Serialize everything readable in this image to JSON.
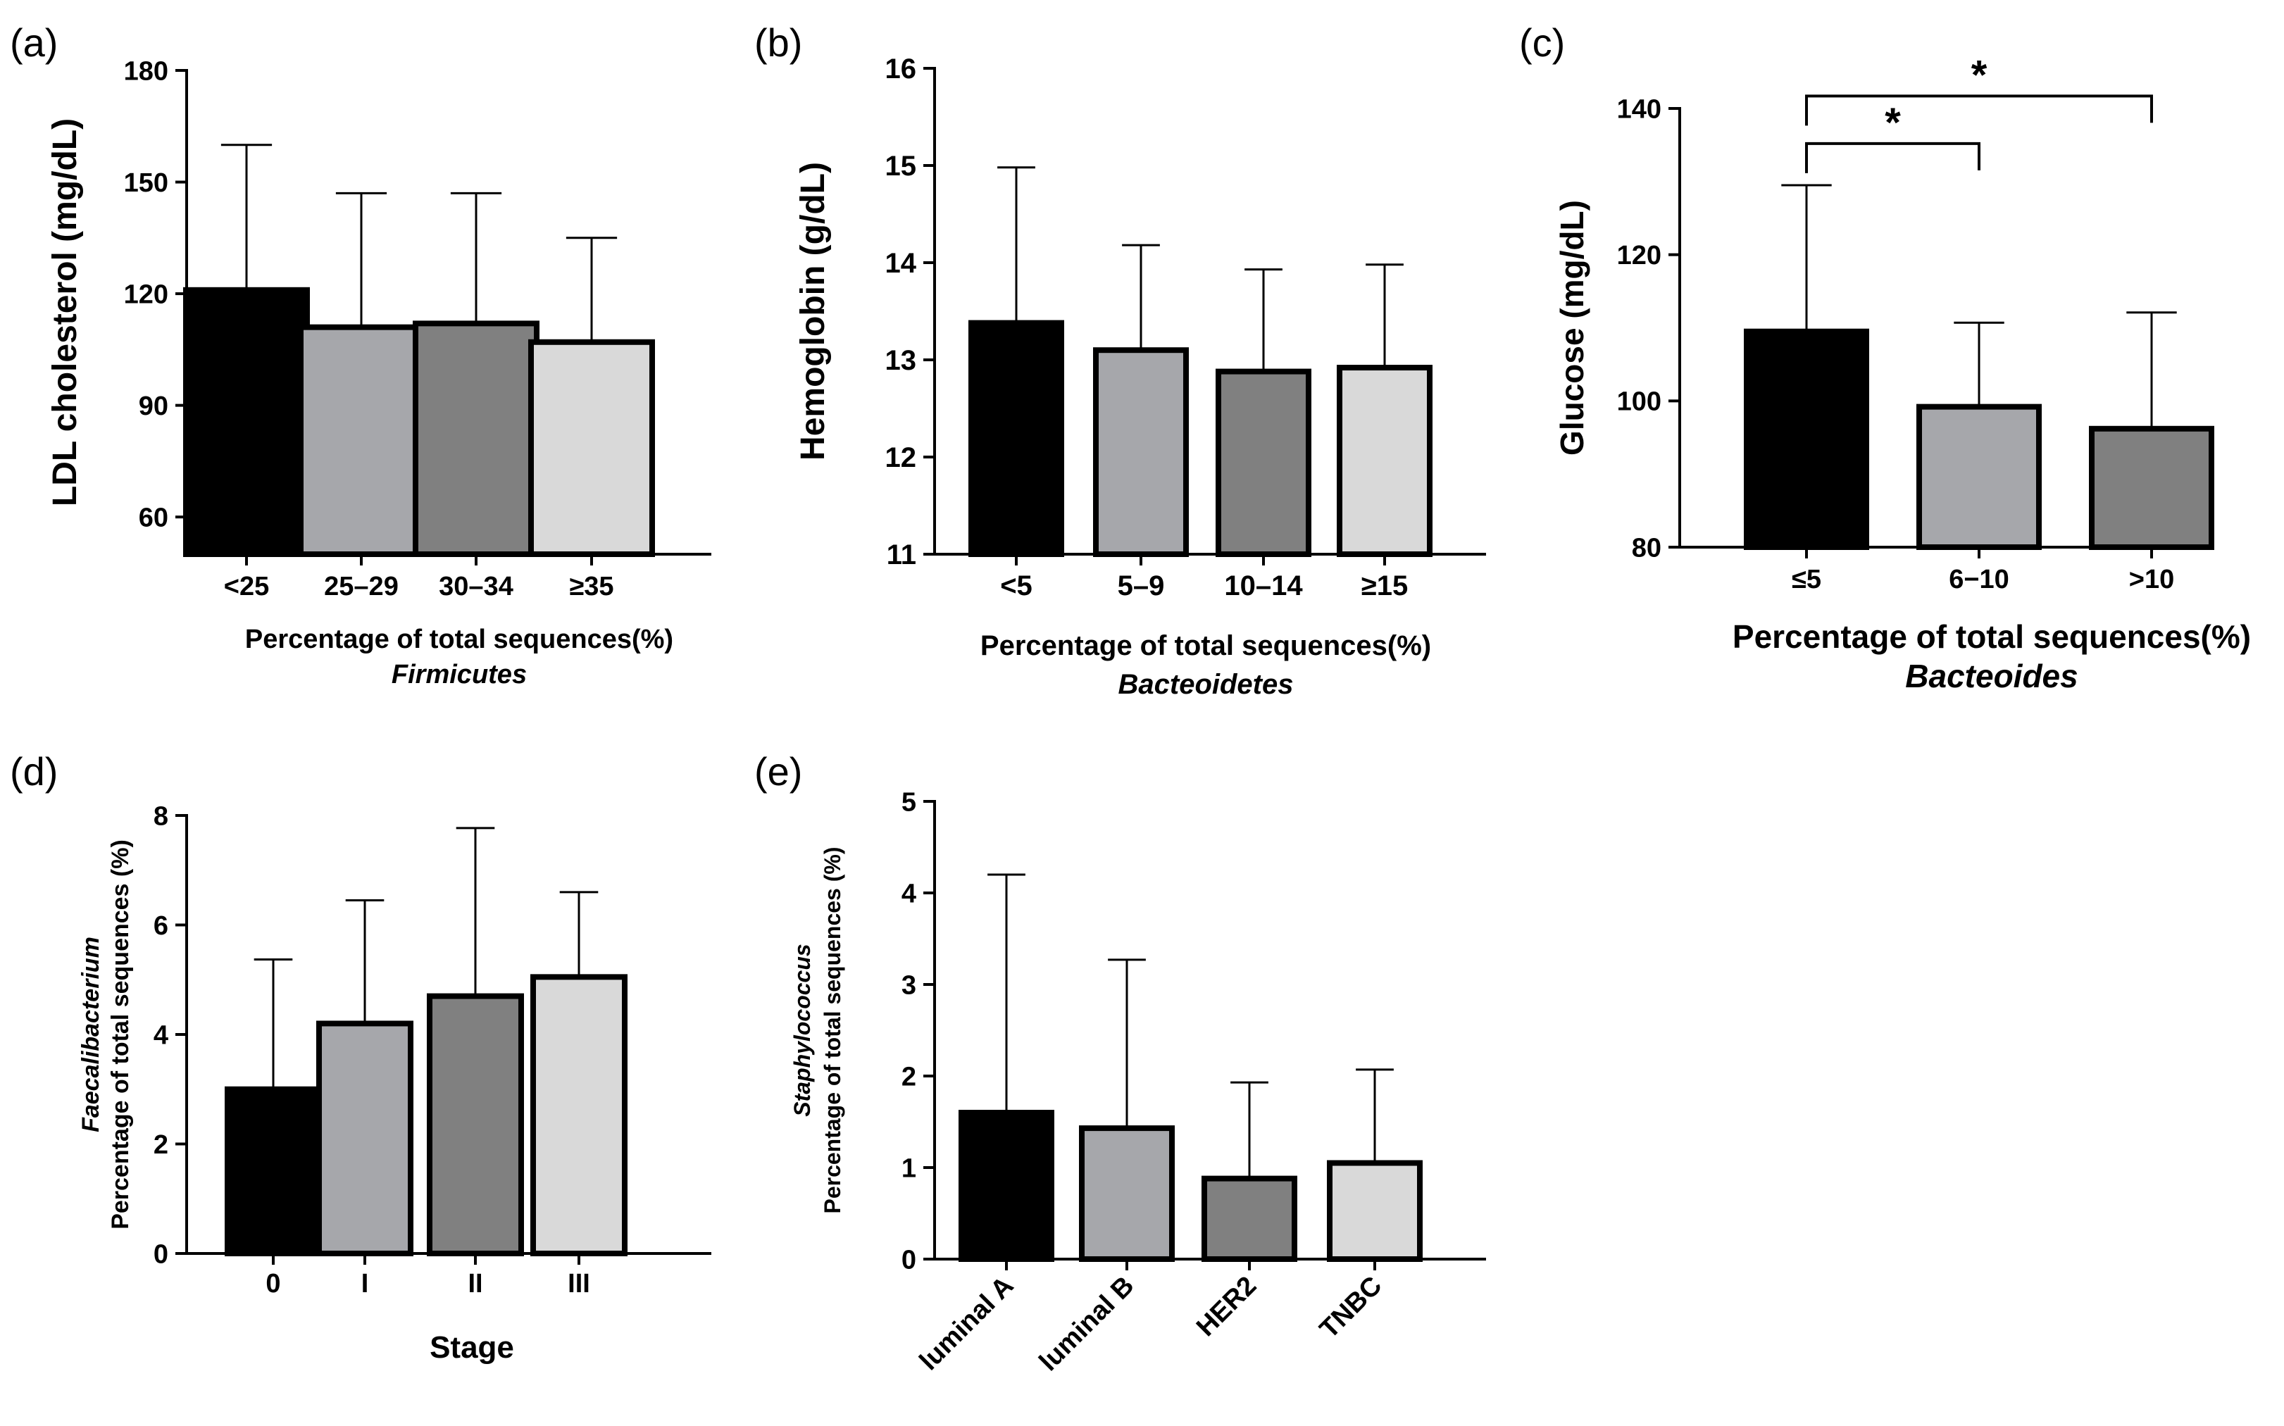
{
  "colors": {
    "black": "#000000",
    "mid_grey": "#a6a7ab",
    "dark_grey": "#808080",
    "light_grey": "#d9d9d9"
  },
  "chart_data": [
    {
      "panel": "(a)",
      "type": "bar",
      "categories": [
        "<25",
        "25–29",
        "30–34",
        "≥35"
      ],
      "values": [
        121,
        111,
        112,
        107
      ],
      "error_upper": [
        160,
        147,
        147,
        135
      ],
      "colors": [
        "#000000",
        "#a6a7ab",
        "#808080",
        "#d9d9d9"
      ],
      "ylabel": "LDL cholesterol (mg/dL)",
      "xlabel": "Percentage of total sequences(%)",
      "xlabel2": "Firmicutes",
      "ylim": [
        50,
        180
      ],
      "yticks": [
        60,
        90,
        120,
        150,
        180
      ],
      "significance": []
    },
    {
      "panel": "(b)",
      "type": "bar",
      "categories": [
        "<5",
        "5–9",
        "10–14",
        "≥15"
      ],
      "values": [
        13.38,
        13.1,
        12.88,
        12.92
      ],
      "error_upper": [
        14.98,
        14.18,
        13.93,
        13.98
      ],
      "colors": [
        "#000000",
        "#a6a7ab",
        "#808080",
        "#d9d9d9"
      ],
      "ylabel": "Hemoglobin (g/dL)",
      "xlabel": "Percentage of total sequences(%)",
      "xlabel2": "Bacteoidetes",
      "ylim": [
        11,
        16
      ],
      "yticks": [
        11,
        12,
        13,
        14,
        15,
        16
      ],
      "significance": []
    },
    {
      "panel": "(c)",
      "type": "bar",
      "categories": [
        "≤5",
        "6−10",
        ">10"
      ],
      "values": [
        109.5,
        99.2,
        96.2
      ],
      "error_upper": [
        129.5,
        110.7,
        112.1
      ],
      "colors": [
        "#000000",
        "#a6a7ab",
        "#808080"
      ],
      "ylabel": "Glucose (mg/dL)",
      "xlabel": "Percentage of total sequences(%)",
      "xlabel2": "Bacteoides",
      "ylim": [
        80,
        140
      ],
      "yticks": [
        80,
        100,
        120,
        140
      ],
      "significance": [
        {
          "from": 0,
          "to": 1,
          "y": 135.2,
          "label": "*"
        },
        {
          "from": 0,
          "to": 2,
          "y": 141.7,
          "label": "*"
        }
      ]
    },
    {
      "panel": "(d)",
      "type": "bar",
      "categories": [
        "0",
        "I",
        "II",
        "III"
      ],
      "values": [
        3.0,
        4.2,
        4.7,
        5.05
      ],
      "error_upper": [
        5.37,
        6.45,
        7.77,
        6.6
      ],
      "colors": [
        "#000000",
        "#a6a7ab",
        "#808080",
        "#d9d9d9"
      ],
      "ylabel": "Percentage of total sequences (%)",
      "ylabel_italic": "Faecalibacterium",
      "xlabel": "Stage",
      "ylim": [
        0,
        8
      ],
      "yticks": [
        0,
        2,
        4,
        6,
        8
      ],
      "significance": []
    },
    {
      "panel": "(e)",
      "type": "bar",
      "categories": [
        "luminal A",
        "luminal B",
        "HER2",
        "TNBC"
      ],
      "values": [
        1.6,
        1.43,
        0.88,
        1.05
      ],
      "error_upper": [
        4.2,
        3.27,
        1.93,
        2.07
      ],
      "colors": [
        "#000000",
        "#a6a7ab",
        "#808080",
        "#d9d9d9"
      ],
      "ylabel": "Percentage of total sequences (%)",
      "ylabel_italic": "Staphylococcus",
      "ylim": [
        0,
        5
      ],
      "yticks": [
        0,
        1,
        2,
        3,
        4,
        5
      ],
      "rotate_xticks": true,
      "significance": []
    }
  ]
}
